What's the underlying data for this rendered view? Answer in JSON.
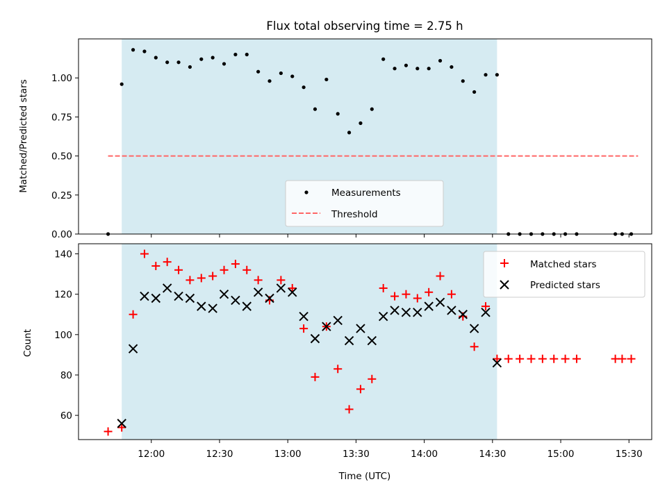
{
  "title": "Flux total observing time = 2.75 h",
  "colors": {
    "shade": "#add8e6",
    "measurement": "#000000",
    "threshold": "#ff6666",
    "matched": "#ff0000",
    "predicted": "#000000"
  },
  "chart_data": [
    {
      "type": "scatter",
      "panel": "top",
      "ylabel": "Matched/Predicted stars",
      "ylim": [
        0,
        1.25
      ],
      "yticks": [
        0.0,
        0.25,
        0.5,
        0.75,
        1.0
      ],
      "ytick_labels": [
        "0.00",
        "0.25",
        "0.50",
        "0.75",
        "1.00"
      ],
      "xlim": [
        "11:28",
        "15:40"
      ],
      "xticks": [
        "12:00",
        "12:30",
        "13:00",
        "13:30",
        "14:00",
        "14:30",
        "15:00",
        "15:30"
      ],
      "shaded_interval": [
        "11:47",
        "14:32"
      ],
      "threshold": 0.5,
      "threshold_x": [
        "11:41",
        "15:34"
      ],
      "legend": {
        "position": "lower center",
        "entries": [
          "Measurements",
          "Threshold"
        ]
      },
      "series": [
        {
          "name": "Measurements",
          "marker": "dot",
          "x": [
            "11:41",
            "11:47",
            "11:52",
            "11:57",
            "12:02",
            "12:07",
            "12:12",
            "12:17",
            "12:22",
            "12:27",
            "12:32",
            "12:37",
            "12:42",
            "12:47",
            "12:52",
            "12:57",
            "13:02",
            "13:07",
            "13:12",
            "13:17",
            "13:22",
            "13:27",
            "13:32",
            "13:37",
            "13:42",
            "13:47",
            "13:52",
            "13:57",
            "14:02",
            "14:07",
            "14:12",
            "14:17",
            "14:22",
            "14:27",
            "14:32",
            "14:37",
            "14:42",
            "14:47",
            "14:52",
            "14:57",
            "15:02",
            "15:07",
            "15:24",
            "15:27",
            "15:31"
          ],
          "y": [
            0.0,
            0.96,
            1.18,
            1.17,
            1.13,
            1.1,
            1.1,
            1.07,
            1.12,
            1.13,
            1.09,
            1.15,
            1.15,
            1.04,
            0.98,
            1.03,
            1.01,
            0.94,
            0.8,
            0.99,
            0.77,
            0.65,
            0.71,
            0.8,
            1.12,
            1.06,
            1.08,
            1.06,
            1.06,
            1.11,
            1.07,
            0.98,
            0.91,
            1.02,
            1.02,
            0.0,
            0.0,
            0.0,
            0.0,
            0.0,
            0.0,
            0.0,
            0.0,
            0.0,
            0.0
          ]
        }
      ]
    },
    {
      "type": "scatter",
      "panel": "bottom",
      "xlabel": "Time (UTC)",
      "ylabel": "Count",
      "ylim": [
        48,
        145
      ],
      "yticks": [
        60,
        80,
        100,
        120,
        140
      ],
      "xlim": [
        "11:28",
        "15:40"
      ],
      "xticks": [
        "12:00",
        "12:30",
        "13:00",
        "13:30",
        "14:00",
        "14:30",
        "15:00",
        "15:30"
      ],
      "shaded_interval": [
        "11:47",
        "14:32"
      ],
      "legend": {
        "position": "upper right",
        "entries": [
          "Matched stars",
          "Predicted stars"
        ]
      },
      "series": [
        {
          "name": "Matched stars",
          "marker": "plus",
          "x": [
            "11:41",
            "11:47",
            "11:52",
            "11:57",
            "12:02",
            "12:07",
            "12:12",
            "12:17",
            "12:22",
            "12:27",
            "12:32",
            "12:37",
            "12:42",
            "12:47",
            "12:52",
            "12:57",
            "13:02",
            "13:07",
            "13:12",
            "13:17",
            "13:22",
            "13:27",
            "13:32",
            "13:37",
            "13:42",
            "13:47",
            "13:52",
            "13:57",
            "14:02",
            "14:07",
            "14:12",
            "14:17",
            "14:22",
            "14:27",
            "14:32",
            "14:37",
            "14:42",
            "14:47",
            "14:52",
            "14:57",
            "15:02",
            "15:07",
            "15:24",
            "15:27",
            "15:31"
          ],
          "y": [
            52,
            54,
            110,
            140,
            134,
            136,
            132,
            127,
            128,
            129,
            132,
            135,
            132,
            127,
            117,
            127,
            123,
            103,
            79,
            104,
            83,
            63,
            73,
            78,
            123,
            119,
            120,
            118,
            121,
            129,
            120,
            109,
            94,
            114,
            88,
            88,
            88,
            88,
            88,
            88,
            88,
            88,
            88,
            88,
            88
          ]
        },
        {
          "name": "Predicted stars",
          "marker": "x",
          "x": [
            "11:47",
            "11:52",
            "11:57",
            "12:02",
            "12:07",
            "12:12",
            "12:17",
            "12:22",
            "12:27",
            "12:32",
            "12:37",
            "12:42",
            "12:47",
            "12:52",
            "12:57",
            "13:02",
            "13:07",
            "13:12",
            "13:17",
            "13:22",
            "13:27",
            "13:32",
            "13:37",
            "13:42",
            "13:47",
            "13:52",
            "13:57",
            "14:02",
            "14:07",
            "14:12",
            "14:17",
            "14:22",
            "14:27",
            "14:32"
          ],
          "y": [
            56,
            93,
            119,
            118,
            123,
            119,
            118,
            114,
            113,
            120,
            117,
            114,
            121,
            118,
            123,
            121,
            109,
            98,
            104,
            107,
            97,
            103,
            97,
            109,
            112,
            111,
            111,
            114,
            116,
            112,
            110,
            103,
            111,
            86
          ]
        }
      ]
    }
  ]
}
